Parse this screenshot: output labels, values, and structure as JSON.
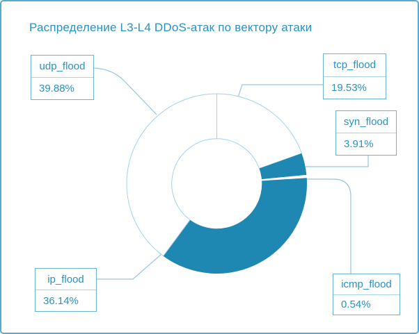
{
  "title": "Распределение L3-L4 DDoS-атак по вектору атаки",
  "colors": {
    "accent": "#1e88b2",
    "text": "#2a91c1",
    "outline": "#a6d1e4",
    "leader": "#96c6dd",
    "box-border": "#6cb2d5",
    "box-divider": "#a9d4e6",
    "page-border": "#56abd5",
    "background": "#ffffff"
  },
  "chart_data": {
    "type": "pie",
    "subtype": "donut",
    "title": "Распределение L3-L4 DDoS-атак по вектору атаки",
    "unit": "%",
    "direction": "clockwise",
    "start_angle_deg": 0,
    "inner_radius_ratio": 0.5,
    "legend_position": "callout-boxes",
    "segments": [
      {
        "label": "tcp_flood",
        "value": 19.53,
        "percent_label": "19.53%",
        "filled": false,
        "outlined": true
      },
      {
        "label": "syn_flood",
        "value": 3.91,
        "percent_label": "3.91%",
        "filled": true,
        "outlined": false
      },
      {
        "label": "icmp_flood",
        "value": 0.54,
        "percent_label": "0.54%",
        "filled": false,
        "outlined": false
      },
      {
        "label": "ip_flood",
        "value": 36.14,
        "percent_label": "36.14%",
        "filled": true,
        "outlined": false
      },
      {
        "label": "udp_flood",
        "value": 39.88,
        "percent_label": "39.88%",
        "filled": false,
        "outlined": true
      }
    ]
  }
}
